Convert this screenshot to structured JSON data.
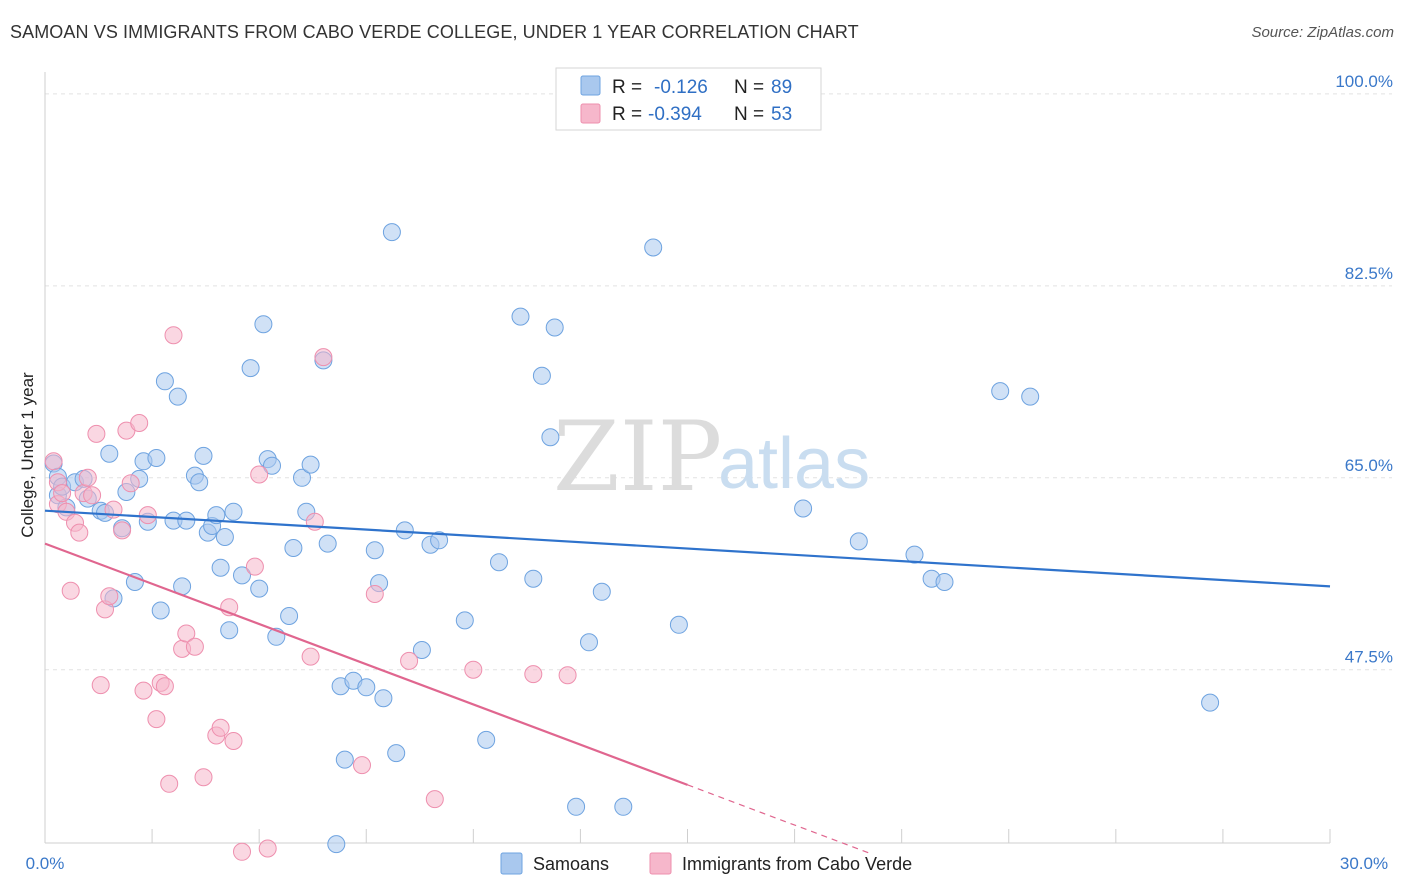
{
  "title": "SAMOAN VS IMMIGRANTS FROM CABO VERDE COLLEGE, UNDER 1 YEAR CORRELATION CHART",
  "source": "Source: ZipAtlas.com",
  "watermark": {
    "part1": "ZIP",
    "part2": "atlas"
  },
  "legend": {
    "rows": [
      {
        "r_label": "R =",
        "r_value": "-0.126",
        "n_label": "N =",
        "n_value": "89",
        "color": "#a9c8ee"
      },
      {
        "r_label": "R =",
        "r_value": "-0.394",
        "n_label": "N =",
        "n_value": "53",
        "color": "#f6b7cb"
      }
    ]
  },
  "bottom_legend": [
    {
      "label": "Samoans",
      "color": "#a9c8ee"
    },
    {
      "label": "Immigrants from Cabo Verde",
      "color": "#f6b7cb"
    }
  ],
  "chart_data": {
    "type": "scatter",
    "xlabel": "",
    "ylabel": "College, Under 1 year",
    "xlim": [
      0,
      30
    ],
    "ylim": [
      31.7,
      102
    ],
    "x_tick_labels": [
      "0.0%",
      "30.0%"
    ],
    "y_ticks": [
      47.5,
      65.0,
      82.5,
      100.0
    ],
    "y_tick_labels": [
      "47.5%",
      "65.0%",
      "82.5%",
      "100.0%"
    ],
    "grid": true,
    "legend_position": "top-center",
    "series": [
      {
        "name": "Samoans",
        "color": "#6ea3e0",
        "fill": "#a9c8ee",
        "line_color": "#2f73cc",
        "trend": {
          "x": [
            0,
            30
          ],
          "y": [
            62.0,
            55.1
          ]
        },
        "points": [
          [
            0.2,
            66.3
          ],
          [
            0.3,
            65.1
          ],
          [
            0.3,
            63.4
          ],
          [
            0.4,
            64.2
          ],
          [
            0.5,
            62.3
          ],
          [
            0.7,
            64.6
          ],
          [
            0.9,
            64.9
          ],
          [
            1.0,
            63.1
          ],
          [
            1.3,
            62.0
          ],
          [
            1.4,
            61.8
          ],
          [
            1.5,
            67.2
          ],
          [
            1.6,
            54.0
          ],
          [
            1.8,
            60.4
          ],
          [
            1.9,
            63.7
          ],
          [
            2.1,
            55.5
          ],
          [
            2.2,
            64.9
          ],
          [
            2.3,
            66.5
          ],
          [
            2.4,
            61.0
          ],
          [
            2.6,
            66.8
          ],
          [
            2.7,
            52.9
          ],
          [
            2.8,
            73.8
          ],
          [
            3.0,
            61.1
          ],
          [
            3.1,
            72.4
          ],
          [
            3.2,
            55.1
          ],
          [
            3.3,
            61.1
          ],
          [
            3.5,
            65.2
          ],
          [
            3.6,
            64.6
          ],
          [
            3.7,
            67.0
          ],
          [
            3.8,
            60.0
          ],
          [
            3.9,
            60.6
          ],
          [
            4.0,
            61.6
          ],
          [
            4.1,
            56.8
          ],
          [
            4.2,
            59.6
          ],
          [
            4.3,
            51.1
          ],
          [
            4.4,
            61.9
          ],
          [
            4.6,
            56.1
          ],
          [
            4.8,
            75.0
          ],
          [
            5.0,
            54.9
          ],
          [
            5.1,
            79.0
          ],
          [
            5.2,
            66.7
          ],
          [
            5.3,
            66.1
          ],
          [
            5.4,
            50.5
          ],
          [
            5.7,
            52.4
          ],
          [
            5.8,
            58.6
          ],
          [
            6.0,
            65.0
          ],
          [
            6.1,
            61.9
          ],
          [
            6.2,
            66.2
          ],
          [
            6.5,
            75.7
          ],
          [
            6.6,
            59.0
          ],
          [
            6.8,
            31.6
          ],
          [
            6.9,
            46.0
          ],
          [
            7.0,
            39.3
          ],
          [
            7.2,
            46.5
          ],
          [
            7.5,
            45.9
          ],
          [
            7.7,
            58.4
          ],
          [
            7.8,
            55.4
          ],
          [
            7.9,
            44.9
          ],
          [
            8.1,
            87.4
          ],
          [
            8.2,
            39.9
          ],
          [
            8.4,
            60.2
          ],
          [
            8.8,
            49.3
          ],
          [
            9.0,
            58.9
          ],
          [
            9.2,
            59.3
          ],
          [
            9.8,
            52.0
          ],
          [
            10.3,
            41.1
          ],
          [
            10.6,
            57.3
          ],
          [
            11.1,
            79.7
          ],
          [
            11.4,
            55.8
          ],
          [
            11.6,
            74.3
          ],
          [
            11.8,
            68.7
          ],
          [
            11.9,
            78.7
          ],
          [
            12.4,
            35.0
          ],
          [
            12.7,
            50.0
          ],
          [
            13.0,
            54.6
          ],
          [
            13.5,
            35.0
          ],
          [
            14.2,
            86.0
          ],
          [
            14.8,
            51.6
          ],
          [
            17.7,
            62.2
          ],
          [
            19.0,
            59.2
          ],
          [
            20.3,
            58.0
          ],
          [
            20.7,
            55.8
          ],
          [
            21.0,
            55.5
          ],
          [
            22.3,
            72.9
          ],
          [
            23.0,
            72.4
          ],
          [
            27.2,
            44.5
          ]
        ]
      },
      {
        "name": "Immigrants from Cabo Verde",
        "color": "#ee8fae",
        "fill": "#f6b7cb",
        "line_color": "#e0668f",
        "trend": {
          "x": [
            0,
            15.0
          ],
          "y": [
            59.0,
            37.0
          ]
        },
        "trend_dashed": {
          "x": [
            15.0,
            19.3
          ],
          "y": [
            37.0,
            30.7
          ]
        },
        "points": [
          [
            0.2,
            66.5
          ],
          [
            0.3,
            64.6
          ],
          [
            0.3,
            62.6
          ],
          [
            0.4,
            63.6
          ],
          [
            0.5,
            61.9
          ],
          [
            0.6,
            54.7
          ],
          [
            0.7,
            60.9
          ],
          [
            0.8,
            60.0
          ],
          [
            0.9,
            63.6
          ],
          [
            1.0,
            65.0
          ],
          [
            1.1,
            63.4
          ],
          [
            1.2,
            69.0
          ],
          [
            1.3,
            46.1
          ],
          [
            1.4,
            53.0
          ],
          [
            1.5,
            54.2
          ],
          [
            1.6,
            62.1
          ],
          [
            1.8,
            60.2
          ],
          [
            1.9,
            69.3
          ],
          [
            2.0,
            64.5
          ],
          [
            2.2,
            70.0
          ],
          [
            2.3,
            45.6
          ],
          [
            2.4,
            61.6
          ],
          [
            2.6,
            43.0
          ],
          [
            2.7,
            46.3
          ],
          [
            2.8,
            46.0
          ],
          [
            2.9,
            37.1
          ],
          [
            3.0,
            78.0
          ],
          [
            3.2,
            49.4
          ],
          [
            3.3,
            50.8
          ],
          [
            3.5,
            49.6
          ],
          [
            3.7,
            37.7
          ],
          [
            4.0,
            41.5
          ],
          [
            4.1,
            42.2
          ],
          [
            4.3,
            53.2
          ],
          [
            4.4,
            41.0
          ],
          [
            4.6,
            30.9
          ],
          [
            4.9,
            56.9
          ],
          [
            5.0,
            65.3
          ],
          [
            5.2,
            31.2
          ],
          [
            6.2,
            48.7
          ],
          [
            6.3,
            61.0
          ],
          [
            6.5,
            76.0
          ],
          [
            7.4,
            38.8
          ],
          [
            7.7,
            54.4
          ],
          [
            8.5,
            48.3
          ],
          [
            9.1,
            35.7
          ],
          [
            10.0,
            47.5
          ],
          [
            11.4,
            47.1
          ],
          [
            12.2,
            47.0
          ]
        ]
      }
    ]
  }
}
